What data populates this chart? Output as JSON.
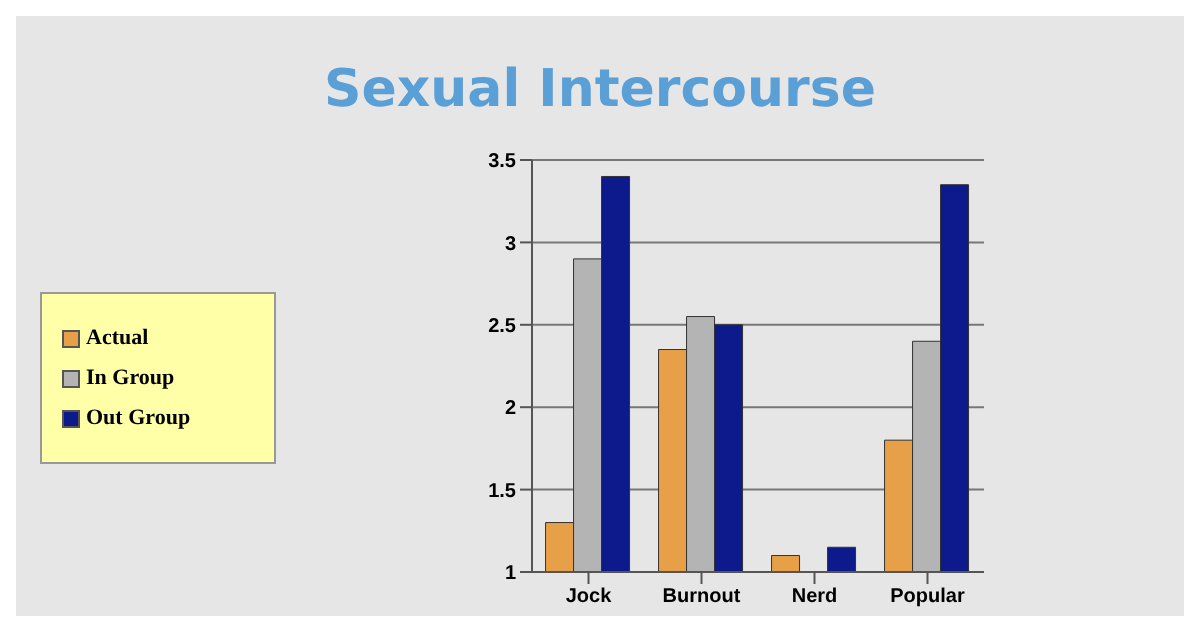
{
  "chart_data": {
    "type": "bar",
    "title": "Sexual Intercourse",
    "categories": [
      "Jock",
      "Burnout",
      "Nerd",
      "Popular"
    ],
    "series": [
      {
        "name": "Actual",
        "color": "#e8a048",
        "values": [
          1.3,
          2.35,
          1.1,
          1.8
        ]
      },
      {
        "name": "In Group",
        "color": "#b4b4b4",
        "values": [
          2.9,
          2.55,
          1.0,
          2.4
        ]
      },
      {
        "name": "Out Group",
        "color": "#0d1a8c",
        "values": [
          3.4,
          2.5,
          1.15,
          3.35
        ]
      }
    ],
    "ylim": [
      1,
      3.5
    ],
    "yticks": [
      1,
      1.5,
      2,
      2.5,
      3,
      3.5
    ],
    "grid": "y",
    "legend": "left"
  }
}
